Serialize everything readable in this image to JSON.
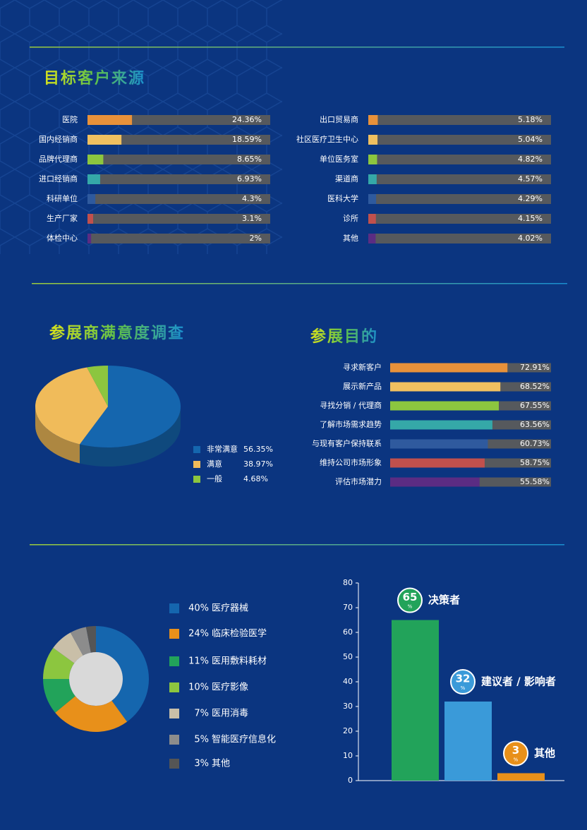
{
  "chart_data": [
    {
      "type": "hbar",
      "title": "目标客户来源",
      "categories": [
        "医院",
        "国内经销商",
        "品牌代理商",
        "进口经销商",
        "科研单位",
        "生产厂家",
        "体检中心",
        "出口贸易商",
        "社区医疗卫生中心",
        "单位医务室",
        "渠道商",
        "医科大学",
        "诊所",
        "其他"
      ],
      "values": [
        24.36,
        18.59,
        8.65,
        6.93,
        4.3,
        3.1,
        2,
        5.18,
        5.04,
        4.82,
        4.57,
        4.29,
        4.15,
        4.02
      ],
      "value_labels": [
        "24.36%",
        "18.59%",
        "8.65%",
        "6.93%",
        "4.3%",
        "3.1%",
        "2%",
        "5.18%",
        "5.04%",
        "4.82%",
        "4.57%",
        "4.29%",
        "4.15%",
        "4.02%"
      ],
      "colors": [
        "#e8913a",
        "#f0c060",
        "#8cc63f",
        "#35a8a8",
        "#2f5a9e",
        "#c0504d",
        "#5b2c83",
        "#e8913a",
        "#f0c060",
        "#8cc63f",
        "#35a8a8",
        "#2f5a9e",
        "#c0504d",
        "#5b2c83"
      ],
      "track_color": "#56595d",
      "xlim": [
        0,
        100
      ]
    },
    {
      "type": "pie",
      "title": "参展商满意度调查",
      "categories": [
        "非常满意",
        "满意",
        "一般"
      ],
      "values": [
        56.35,
        38.97,
        4.68
      ],
      "value_labels": [
        "56.35%",
        "38.97%",
        "4.68%"
      ],
      "colors": [
        "#1566ae",
        "#f0bb5a",
        "#8cc63f"
      ]
    },
    {
      "type": "hbar",
      "title": "参展目的",
      "categories": [
        "寻求新客户",
        "展示新产品",
        "寻找分销 / 代理商",
        "了解市场需求趋势",
        "与现有客户保持联系",
        "维持公司市场形象",
        "评估市场潜力"
      ],
      "values": [
        72.91,
        68.52,
        67.55,
        63.56,
        60.73,
        58.75,
        55.58
      ],
      "value_labels": [
        "72.91%",
        "68.52%",
        "67.55%",
        "63.56%",
        "60.73%",
        "58.75%",
        "55.58%"
      ],
      "colors": [
        "#e8913a",
        "#f0c060",
        "#8cc63f",
        "#35a8a8",
        "#2f5a9e",
        "#c0504d",
        "#5b2c83"
      ],
      "track_color": "#56595d",
      "xlim": [
        0,
        100
      ]
    },
    {
      "type": "donut",
      "categories": [
        "医疗器械",
        "临床检验医学",
        "医用敷料耗材",
        "医疗影像",
        "医用消毒",
        "智能医疗信息化",
        "其他"
      ],
      "values": [
        40,
        24,
        11,
        10,
        7,
        5,
        3
      ],
      "value_labels": [
        "40%",
        "24%",
        "11%",
        "10%",
        "7%",
        "5%",
        "3%"
      ],
      "colors": [
        "#1566ae",
        "#e8901a",
        "#22a35a",
        "#8cc63f",
        "#c9bfa8",
        "#8c8c8c",
        "#555555"
      ]
    },
    {
      "type": "bar",
      "categories": [
        "决策者",
        "建议者 / 影响者",
        "其他"
      ],
      "values": [
        65,
        32,
        3
      ],
      "value_unit": "%",
      "colors": [
        "#22a35a",
        "#3a9ad9",
        "#e8901a"
      ],
      "ylim": [
        0,
        80
      ],
      "yticks": [
        0,
        10,
        20,
        30,
        40,
        50,
        60,
        70,
        80
      ]
    }
  ]
}
